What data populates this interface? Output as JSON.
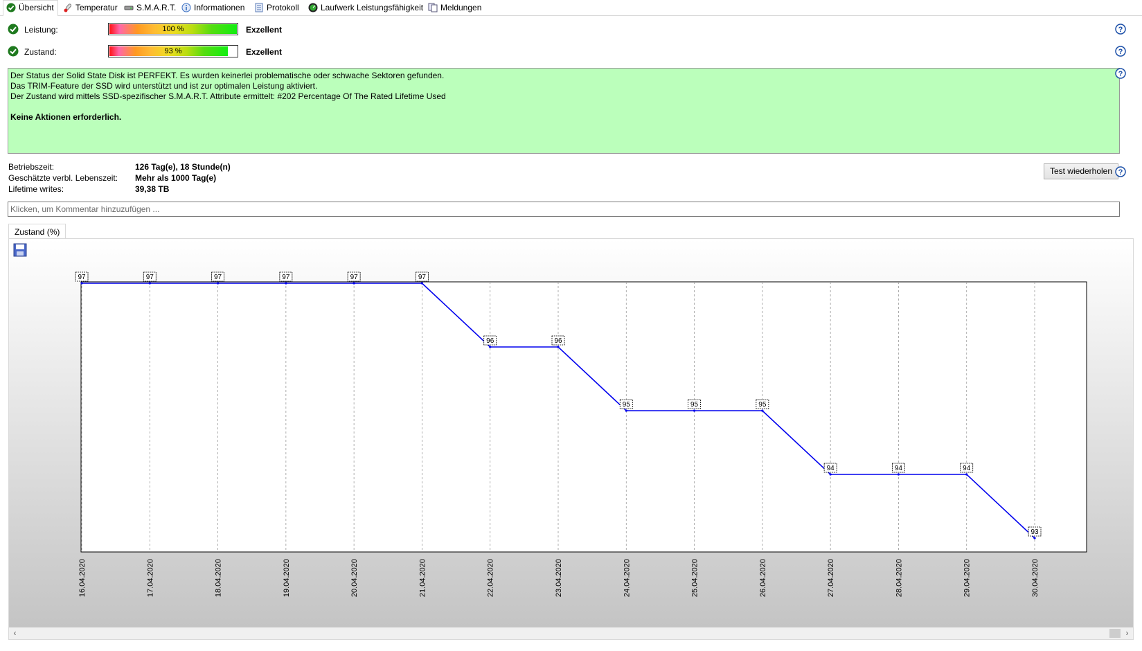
{
  "tabs": [
    {
      "label": "Übersicht",
      "icon": "check-circle-icon"
    },
    {
      "label": "Temperatur",
      "icon": "thermometer-icon"
    },
    {
      "label": "S.M.A.R.T.",
      "icon": "drive-icon"
    },
    {
      "label": "Informationen",
      "icon": "info-icon"
    },
    {
      "label": "Protokoll",
      "icon": "log-document-icon"
    },
    {
      "label": "Laufwerk Leistungsfähigkeit",
      "icon": "speedometer-icon"
    },
    {
      "label": "Meldungen",
      "icon": "messages-icon"
    }
  ],
  "metrics": [
    {
      "label": "Leistung:",
      "percent_text": "100 %",
      "fill_fraction": 1.0,
      "rating": "Exzellent"
    },
    {
      "label": "Zustand:",
      "percent_text": "93 %",
      "fill_fraction": 0.93,
      "rating": "Exzellent"
    }
  ],
  "status": {
    "line1": "Der Status der Solid State Disk ist PERFEKT. Es wurden keinerlei problematische oder schwache Sektoren gefunden.",
    "line2": "Das TRIM-Feature der SSD wird unterstützt und ist zur optimalen Leistung aktiviert.",
    "line3": "Der Zustand wird mittels SSD-spezifischer S.M.A.R.T. Attribute ermittelt:  #202 Percentage Of The Rated Lifetime Used",
    "action": "Keine Aktionen erforderlich.",
    "background": "#bbffbb"
  },
  "info": [
    {
      "label": "Betriebszeit:",
      "value": "126 Tag(e), 18 Stunde(n)"
    },
    {
      "label": "Geschätzte verbl. Lebenszeit:",
      "value": "Mehr als 1000 Tag(e)"
    },
    {
      "label": "Lifetime writes:",
      "value": "39,38 TB"
    }
  ],
  "retest_button": "Test wiederholen",
  "comment_placeholder": "Klicken, um Kommentar hinzuzufügen ...",
  "chart_tab": "Zustand (%)",
  "chart_data": {
    "type": "line",
    "x": [
      "16.04.2020",
      "17.04.2020",
      "18.04.2020",
      "19.04.2020",
      "20.04.2020",
      "21.04.2020",
      "22.04.2020",
      "23.04.2020",
      "24.04.2020",
      "25.04.2020",
      "26.04.2020",
      "27.04.2020",
      "28.04.2020",
      "29.04.2020",
      "30.04.2020"
    ],
    "series": [
      {
        "values": [
          97,
          97,
          97,
          97,
          97,
          97,
          96,
          96,
          95,
          95,
          95,
          94,
          94,
          94,
          93
        ],
        "color": "#0000ee"
      }
    ],
    "ylim": [
      93,
      97
    ],
    "grid": "vertical dashed",
    "data_labels": true,
    "line_color": "#0000ee"
  }
}
